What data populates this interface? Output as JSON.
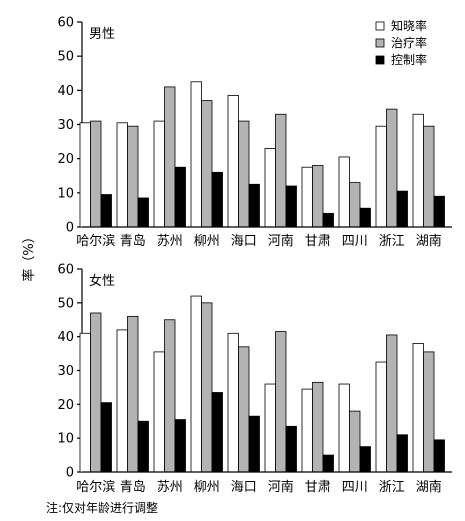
{
  "chart_data": [
    {
      "type": "bar",
      "panel_label": "男性",
      "categories": [
        "哈尔滨",
        "青岛",
        "苏州",
        "柳州",
        "海口",
        "河南",
        "甘肃",
        "四川",
        "浙江",
        "湖南"
      ],
      "series": [
        {
          "name": "知晓率",
          "color": "#ffffff",
          "values": [
            30.5,
            30.5,
            31.0,
            42.5,
            38.5,
            23.0,
            17.5,
            20.5,
            29.5,
            33.0
          ]
        },
        {
          "name": "治疗率",
          "color": "#b3b3b3",
          "values": [
            31.0,
            29.5,
            41.0,
            37.0,
            31.0,
            33.0,
            18.0,
            13.0,
            34.5,
            29.5
          ]
        },
        {
          "name": "控制率",
          "color": "#000000",
          "values": [
            9.5,
            8.5,
            17.5,
            16.0,
            12.5,
            12.0,
            4.0,
            5.5,
            10.5,
            9.0
          ]
        }
      ],
      "yticks": [
        "0",
        "10",
        "20",
        "30",
        "40",
        "50",
        "60"
      ],
      "ylim": [
        0,
        60
      ],
      "legend_position": "top-right"
    },
    {
      "type": "bar",
      "panel_label": "女性",
      "categories": [
        "哈尔滨",
        "青岛",
        "苏州",
        "柳州",
        "海口",
        "河南",
        "甘肃",
        "四川",
        "浙江",
        "湖南"
      ],
      "series": [
        {
          "name": "知晓率",
          "color": "#ffffff",
          "values": [
            41.0,
            42.0,
            35.5,
            52.0,
            41.0,
            26.0,
            24.5,
            26.0,
            32.5,
            38.0
          ]
        },
        {
          "name": "治疗率",
          "color": "#b3b3b3",
          "values": [
            47.0,
            46.0,
            45.0,
            50.0,
            37.0,
            41.5,
            26.5,
            18.0,
            40.5,
            35.5
          ]
        },
        {
          "name": "控制率",
          "color": "#000000",
          "values": [
            20.5,
            15.0,
            15.5,
            23.5,
            16.5,
            13.5,
            5.0,
            7.5,
            11.0,
            9.5
          ]
        }
      ],
      "yticks": [
        "0",
        "10",
        "20",
        "30",
        "40",
        "50",
        "60"
      ],
      "ylim": [
        0,
        60
      ]
    }
  ],
  "ylabel": "率（%）",
  "footnote": "注:仅对年龄进行调整"
}
